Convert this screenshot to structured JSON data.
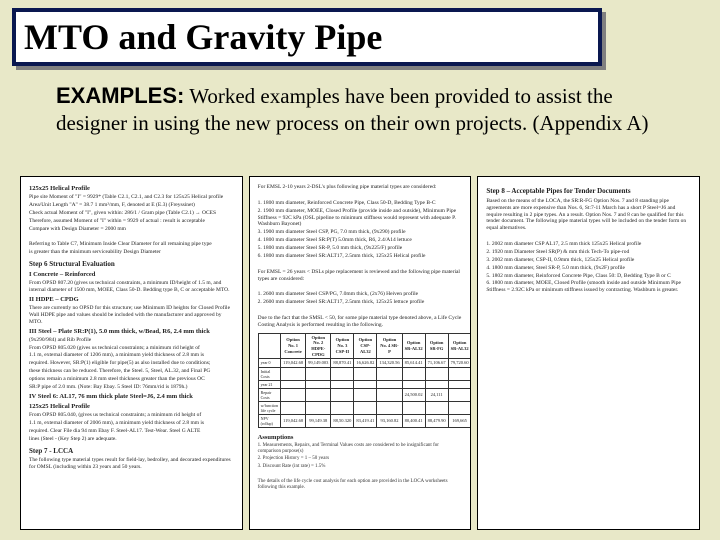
{
  "title": "MTO and Gravity Pipe",
  "body": {
    "label": "EXAMPLES:",
    "text": " Worked examples have been provided to assist the designer in using the new process on their own projects. (Appendix A)"
  },
  "colors": {
    "background": "#e8e8c8",
    "title_box": "#0a1850",
    "shadow": "#808080",
    "page_bg": "#ffffff"
  },
  "pages": {
    "page1": {
      "h1": "125x25 Helical Profile",
      "lines1": [
        "Pipe site Moment of \"I\" = 9929* (Table C2.1, C2.1, and C2.3 for 125x25 Helical profile",
        "Area/Unit Length \"A\" = 38.7 1 mm²/mm, F, denoted at E (E.3) (Freyssinet)",
        "Check actual Moment of \"I\", given within: 286/1 / Gram pipe (Table C2.1) → OCES",
        "Therefore, assumed Moment of \"I\" within = 9929 of actual : result is acceptable",
        "Compare with Design Diameter = 2000 mm"
      ],
      "lines2": [
        "Referring to Table C7, Minimum Inside Clear Diameter for all remaining pipe type",
        "is greater than the minimum serviceability Design Diameter"
      ],
      "step6": "Step 6   Structural Evaluation",
      "sec1_h": "I   Concrete – Reinforced",
      "sec1_p": "From OPSD 807.20 (gives us technical constraints, a minimum ID/height of 1.5 m, and internal diameter of 1500 mm, MOEE, Class 50-D. Bedding type B, C or acceptable MTO.",
      "sec2_h": "II   HDPE – CPDG",
      "sec2_p": "There are currently no OPSD for this structure; use Minimum ID heights for Closed Profile Wall HDPE pipe and values should be included with the manufacturer and approved by MTO.",
      "sec3_h": "III   Steel – Plate SR:P(1), 5.0 mm thick, w/Bead, R6, 2.4 mm thick",
      "sec3_lines": [
        "(9x290/984) and Rib Profile",
        "From OPSD 805.020 (gives us technical constraints; a minimum rid height of",
        "1.1 m, external diameter of 1206 mm), a minimum yield thickness of 2.8 mm is",
        "required. However, SR:P(1) eligible for pipe(5) as also installed due to conditions;",
        "these thickness can be reduced. Therefore, the Steel. 5, Steel, AL.32, and Final PG",
        "options remain a minimum 2.8 mm steel thickness greater than the previous OC",
        "SR:P pipe of 2.0 mm. (Note: Bay Ebay. 5 Steel ID: 76mm/rid is 1879h.)"
      ],
      "sec4_h": "IV   Steel 6: AL17, 76 mm thick plate Steel=J6, 2.4 mm thick",
      "sec4_h2": "125x25 Helical Profile",
      "sec4_lines": [
        "From OPSD 805.040, (gives us technical constraints; a minimum rid height of",
        "1.1 m, external diameter of 2006 mm), a minimum yield thickness of 2.8 mm is",
        "required. Clear File dia 94 mm Ebay F. Steel-AL17. Test-Wear. Steel G ALTE",
        "lines (Steel - (Key Step 2) are adequate."
      ],
      "step7": "Step 7 - LCCA",
      "step7_p": "The following type material types result for field-lay, bedrolley, and decorated expenditures for OMSL (including within 23 years and 50 years."
    },
    "page2": {
      "header_lines": [
        "For EMSL 2-10 years 2-DSL's plus following pipe material types are considered:",
        "1. 1800 mm diameter, Reinforced Concrete Pipe, Class 50-D, Bedding Type B-C",
        "2. 1900 mm diameter, MOEE, Closed Profile (provide inside and outside), Minimum Pipe Stiffness = 92C kPa (OSL pipeline to minimum stiffness would represent with adequate P. Washburn Bayonet)",
        "3. 1900 mm diameter Steel CSP, PG, 7.0 mm thick, (9x290) profile",
        "4. 1800 mm diameter Steel SR:P(T) 5.0mm thick, R6, 2.4/A14 lettuce",
        "5. 1800 mm diameter Steel SR-P, 5.0 mm thick, (9x225/F) profile",
        "6. 1800 mm diameter Steel SR:ALT17, 2.5mm thick, 125x25 Helical profile"
      ],
      "mid_lines": [
        "For EMSL = 26 years < DSLs pipe replacement is reviewed and the following pipe material types are considered:",
        "1. 2600 mm diameter Steel CSP/PG, 7.0mm thick, (2x76) Heiven profile",
        "2. 2600 mm diameter Steel SR:ALT17, 2.5mm thick, 125x25 lettuce profile",
        "Due to the fact that the SMSL < 50, for some pipe material type denoted above, a Life Cycle Costing Analysis is performed resulting in the following."
      ],
      "table": {
        "cols": [
          "",
          "Option No. 1 Concrete",
          "Option No. 2 HDPE-CPDG",
          "Option No. 3 CSP-II",
          "Option CSP-AL32",
          "Option No. 4 SR-P",
          "Option SR-AL32",
          "Option SR-FG",
          "Option SR-AL32"
        ],
        "rows": [
          [
            "year 0",
            "119,042.68",
            "99,149.003",
            "88,870.41",
            "16,626.82",
            "134,320.56",
            "85,614.41",
            "71,106.67",
            "79,720.60"
          ],
          [
            "Initial Costs",
            "",
            "",
            "",
            "",
            "",
            "",
            "",
            ""
          ],
          [
            "year 21",
            "",
            "",
            "",
            "",
            "",
            "",
            "",
            ""
          ],
          [
            "Repair Costs",
            " ",
            " ",
            " ",
            " ",
            " ",
            "24,500.02",
            "24,111",
            " "
          ],
          [
            "w/function life cycle",
            "",
            "",
            "",
            "",
            "",
            "",
            "",
            ""
          ],
          [
            "NPV (rollup)",
            "119,042.68",
            "99,149.38",
            "88,50.320",
            "83,419.41",
            "93,160.82",
            "80,400.41",
            "88,479.90",
            "169,665"
          ]
        ]
      },
      "footer_h": "Assumptions",
      "footer_lines": [
        "1. Measurements, Repairs, and Terminal Values costs are considered to be insignificant for comparison purpose(s)",
        "2. Projection History = 1 – 50 years",
        "3. Discount Rate (int rate) = 1.5%",
        "The details of the life cycle cost analysis for each option are provided in the LOCA worksheets following this example."
      ]
    },
    "page3": {
      "step8": "Step 8 – Acceptable Pipes for Tender Documents",
      "intro": "Based on the means of the LOCA, the SR:R-FG Option Nos. 7 and 8 standing pipe agreements are more expensive than Nos. 6, St:7-11 March has a short P Steel=J6 and require resulting in 2 pipe types. An a result. Option Nos. 7 and 8 can be qualified for this tender document. The following pipe material types will be included on the tender form on equal alternatives.",
      "items": [
        "1. 2002 mm diameter CSP AL17, 2.5 mm thick 125x25 Helical profile",
        "2. 1920 mm Diameter Steel SR(P) & mm thick Tech-To pipe-rod",
        "3. 2002 mm diameter, CSP-II, 0.9mm thick, 125x25 Helical profile",
        "4. 1800 mm diameter, Steel SR-P, 5.0 mm thick, (9x2F) profile",
        "5. 1802 mm diameter, Reinforced Concrete Pipe, Class 50: D, Bedding Type B or C",
        "6. 1800 mm diameter, MOEE, Closed Profile (smooth inside and outside Minimum Pipe Stiffness = 2.92C kPa or minimum stiffness issued by contracting. Washburn is greater."
      ]
    }
  }
}
